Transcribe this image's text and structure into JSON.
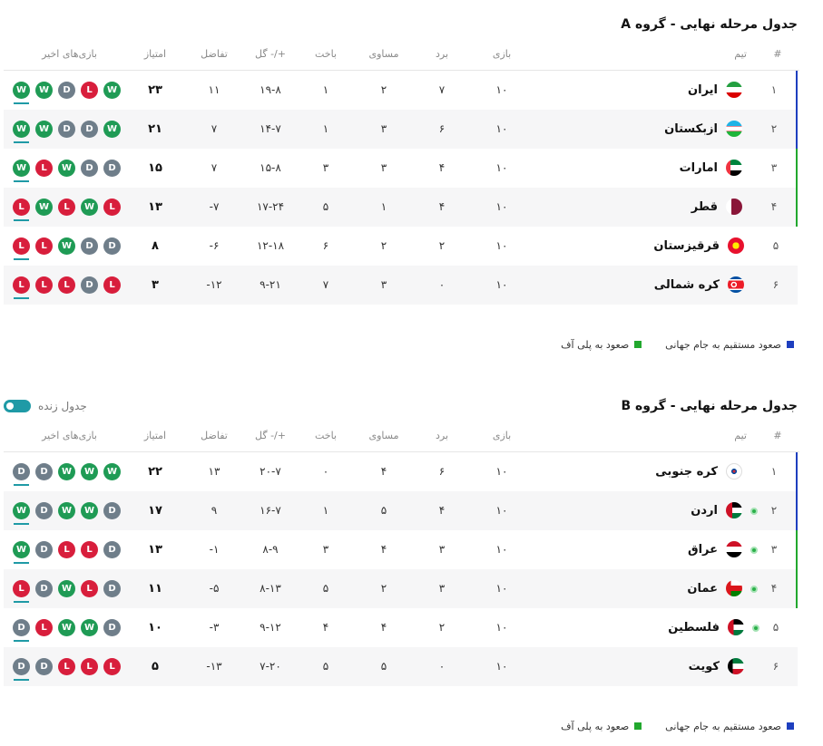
{
  "legend": {
    "direct": "صعود مستقیم به جام جهانی",
    "playoff": "صعود به پلی آف",
    "direct_color": "#1e3fbf",
    "playoff_color": "#22a82e"
  },
  "headers": {
    "rank": "#",
    "team": "تیم",
    "played": "بازی",
    "won": "برد",
    "drawn": "مساوی",
    "lost": "باخت",
    "goals": "گل -/+",
    "diff": "تفاضل",
    "points": "امتیاز",
    "form": "بازی‌های اخیر"
  },
  "groups": [
    {
      "title": "جدول مرحله نهایی - گروه A",
      "rows": [
        {
          "rank": "۱",
          "team": "ایران",
          "flag": "iran-flag-icon",
          "played": "۱۰",
          "won": "۷",
          "drawn": "۲",
          "lost": "۱",
          "goals": "۱۹-۸",
          "diff": "۱۱",
          "points": "۲۳",
          "form": [
            "W",
            "W",
            "D",
            "L",
            "W"
          ]
        },
        {
          "rank": "۲",
          "team": "ازبکستان",
          "flag": "uzbekistan-flag-icon",
          "played": "۱۰",
          "won": "۶",
          "drawn": "۳",
          "lost": "۱",
          "goals": "۱۴-۷",
          "diff": "۷",
          "points": "۲۱",
          "form": [
            "W",
            "W",
            "D",
            "D",
            "W"
          ]
        },
        {
          "rank": "۳",
          "team": "امارات",
          "flag": "uae-flag-icon",
          "played": "۱۰",
          "won": "۴",
          "drawn": "۳",
          "lost": "۳",
          "goals": "۱۵-۸",
          "diff": "۷",
          "points": "۱۵",
          "form": [
            "W",
            "L",
            "W",
            "D",
            "D"
          ]
        },
        {
          "rank": "۴",
          "team": "قطر",
          "flag": "qatar-flag-icon",
          "played": "۱۰",
          "won": "۴",
          "drawn": "۱",
          "lost": "۵",
          "goals": "۱۷-۲۴",
          "diff": "-۷",
          "points": "۱۳",
          "form": [
            "L",
            "W",
            "L",
            "W",
            "L"
          ]
        },
        {
          "rank": "۵",
          "team": "قرقیزستان",
          "flag": "kyrgyzstan-flag-icon",
          "played": "۱۰",
          "won": "۲",
          "drawn": "۲",
          "lost": "۶",
          "goals": "۱۲-۱۸",
          "diff": "-۶",
          "points": "۸",
          "form": [
            "L",
            "L",
            "W",
            "D",
            "D"
          ]
        },
        {
          "rank": "۶",
          "team": "کره شمالی",
          "flag": "north-korea-flag-icon",
          "played": "۱۰",
          "won": "۰",
          "drawn": "۳",
          "lost": "۷",
          "goals": "۹-۲۱",
          "diff": "-۱۲",
          "points": "۳",
          "form": [
            "L",
            "L",
            "L",
            "D",
            "L"
          ]
        }
      ]
    },
    {
      "title": "جدول مرحله نهایی - گروه B",
      "live_label": "جدول زنده",
      "rows": [
        {
          "rank": "۱",
          "team": "کره جنوبی",
          "flag": "south-korea-flag-icon",
          "played": "۱۰",
          "won": "۶",
          "drawn": "۴",
          "lost": "۰",
          "goals": "۲۰-۷",
          "diff": "۱۳",
          "points": "۲۲",
          "form": [
            "D",
            "D",
            "W",
            "W",
            "W"
          ],
          "qualified": false
        },
        {
          "rank": "۲",
          "team": "اردن",
          "flag": "jordan-flag-icon",
          "played": "۱۰",
          "won": "۴",
          "drawn": "۵",
          "lost": "۱",
          "goals": "۱۶-۷",
          "diff": "۹",
          "points": "۱۷",
          "form": [
            "W",
            "D",
            "W",
            "W",
            "D"
          ],
          "qualified": true
        },
        {
          "rank": "۳",
          "team": "عراق",
          "flag": "iraq-flag-icon",
          "played": "۱۰",
          "won": "۳",
          "drawn": "۴",
          "lost": "۳",
          "goals": "۸-۹",
          "diff": "-۱",
          "points": "۱۳",
          "form": [
            "W",
            "D",
            "L",
            "L",
            "D"
          ],
          "qualified": true
        },
        {
          "rank": "۴",
          "team": "عمان",
          "flag": "oman-flag-icon",
          "played": "۱۰",
          "won": "۳",
          "drawn": "۲",
          "lost": "۵",
          "goals": "۸-۱۳",
          "diff": "-۵",
          "points": "۱۱",
          "form": [
            "L",
            "D",
            "W",
            "L",
            "D"
          ],
          "qualified": true
        },
        {
          "rank": "۵",
          "team": "فلسطین",
          "flag": "palestine-flag-icon",
          "played": "۱۰",
          "won": "۲",
          "drawn": "۴",
          "lost": "۴",
          "goals": "۹-۱۲",
          "diff": "-۳",
          "points": "۱۰",
          "form": [
            "D",
            "L",
            "W",
            "W",
            "D"
          ],
          "qualified": true
        },
        {
          "rank": "۶",
          "team": "کویت",
          "flag": "kuwait-flag-icon",
          "played": "۱۰",
          "won": "۰",
          "drawn": "۵",
          "lost": "۵",
          "goals": "۷-۲۰",
          "diff": "-۱۳",
          "points": "۵",
          "form": [
            "D",
            "D",
            "L",
            "L",
            "L"
          ],
          "qualified": false
        }
      ]
    }
  ]
}
